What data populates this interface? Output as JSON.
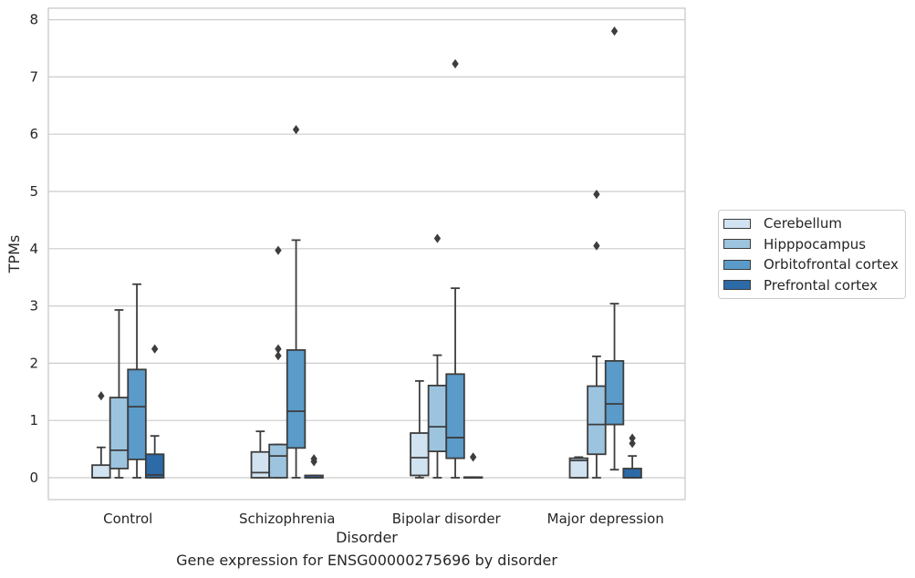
{
  "chart_data": {
    "type": "boxplot",
    "title": "",
    "xlabel": "Disorder",
    "ylabel": "TPMs",
    "caption": "Gene expression for ENSG00000275696 by disorder",
    "ylim": [
      -0.38,
      8.2
    ],
    "yticks": [
      0,
      1,
      2,
      3,
      4,
      5,
      6,
      7,
      8
    ],
    "grid": "horizontal",
    "legend_position": "right",
    "categories": [
      "Control",
      "Schizophrenia",
      "Bipolar disorder",
      "Major depression"
    ],
    "series": [
      {
        "name": "Cerebellum",
        "color": "#d1e2f1",
        "boxes": [
          {
            "category": "Control",
            "whislo": 0.0,
            "q1": 0.0,
            "med": 0.0,
            "q3": 0.22,
            "whishi": 0.53,
            "fliers": [
              1.43
            ]
          },
          {
            "category": "Schizophrenia",
            "whislo": 0.0,
            "q1": 0.0,
            "med": 0.09,
            "q3": 0.45,
            "whishi": 0.81,
            "fliers": []
          },
          {
            "category": "Bipolar disorder",
            "whislo": 0.0,
            "q1": 0.04,
            "med": 0.35,
            "q3": 0.78,
            "whishi": 1.69,
            "fliers": []
          },
          {
            "category": "Major depression",
            "whislo": 0.0,
            "q1": 0.0,
            "med": 0.3,
            "q3": 0.34,
            "whishi": 0.36,
            "fliers": []
          }
        ]
      },
      {
        "name": "Hipppocampus",
        "color": "#9cc4df",
        "boxes": [
          {
            "category": "Control",
            "whislo": 0.0,
            "q1": 0.16,
            "med": 0.48,
            "q3": 1.4,
            "whishi": 2.93,
            "fliers": []
          },
          {
            "category": "Schizophrenia",
            "whislo": 0.0,
            "q1": 0.0,
            "med": 0.38,
            "q3": 0.58,
            "whishi": 0.58,
            "fliers": [
              2.13,
              2.25,
              3.97
            ]
          },
          {
            "category": "Bipolar disorder",
            "whislo": 0.0,
            "q1": 0.46,
            "med": 0.89,
            "q3": 1.61,
            "whishi": 2.14,
            "fliers": [
              4.18
            ]
          },
          {
            "category": "Major depression",
            "whislo": 0.0,
            "q1": 0.41,
            "med": 0.93,
            "q3": 1.6,
            "whishi": 2.12,
            "fliers": [
              4.05,
              4.95
            ]
          }
        ]
      },
      {
        "name": "Orbitofrontal cortex",
        "color": "#5a9bca",
        "boxes": [
          {
            "category": "Control",
            "whislo": 0.0,
            "q1": 0.32,
            "med": 1.24,
            "q3": 1.89,
            "whishi": 3.38,
            "fliers": []
          },
          {
            "category": "Schizophrenia",
            "whislo": 0.0,
            "q1": 0.52,
            "med": 1.16,
            "q3": 2.23,
            "whishi": 4.15,
            "fliers": [
              6.08
            ]
          },
          {
            "category": "Bipolar disorder",
            "whislo": 0.0,
            "q1": 0.34,
            "med": 0.7,
            "q3": 1.81,
            "whishi": 3.31,
            "fliers": [
              7.23
            ]
          },
          {
            "category": "Major depression",
            "whislo": 0.14,
            "q1": 0.93,
            "med": 1.29,
            "q3": 2.04,
            "whishi": 3.04,
            "fliers": [
              7.8
            ]
          }
        ]
      },
      {
        "name": "Prefrontal cortex",
        "color": "#2c6aa8",
        "boxes": [
          {
            "category": "Control",
            "whislo": 0.0,
            "q1": 0.0,
            "med": 0.05,
            "q3": 0.41,
            "whishi": 0.73,
            "fliers": [
              2.25
            ]
          },
          {
            "category": "Schizophrenia",
            "whislo": 0.0,
            "q1": 0.0,
            "med": 0.0,
            "q3": 0.04,
            "whishi": 0.04,
            "fliers": [
              0.28,
              0.33
            ]
          },
          {
            "category": "Bipolar disorder",
            "whislo": 0.0,
            "q1": 0.0,
            "med": 0.0,
            "q3": 0.01,
            "whishi": 0.01,
            "fliers": [
              0.36
            ]
          },
          {
            "category": "Major depression",
            "whislo": 0.0,
            "q1": 0.0,
            "med": 0.0,
            "q3": 0.16,
            "whishi": 0.38,
            "fliers": [
              0.6,
              0.69
            ]
          }
        ]
      }
    ]
  }
}
